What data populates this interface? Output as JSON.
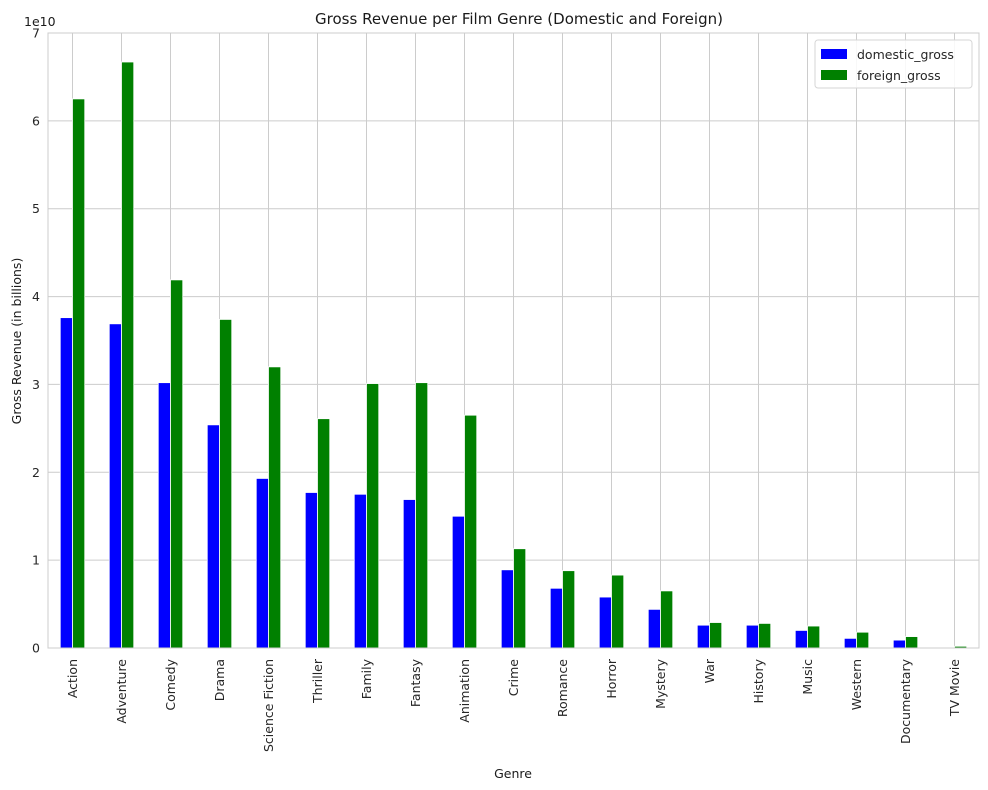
{
  "chart_data": {
    "type": "bar",
    "title": "Gross Revenue per Film Genre (Domestic and Foreign)",
    "xlabel": "Genre",
    "ylabel": "Gross Revenue (in billions)",
    "y_offset_label": "1e10",
    "y_scale": 10000000000,
    "ylim": [
      0,
      70000000000
    ],
    "yticks": [
      0,
      10000000000,
      20000000000,
      30000000000,
      40000000000,
      50000000000,
      60000000000,
      70000000000
    ],
    "ytick_labels": [
      "0",
      "1",
      "2",
      "3",
      "4",
      "5",
      "6",
      "7"
    ],
    "grid": true,
    "legend_position": "top-right",
    "categories": [
      "Action",
      "Adventure",
      "Comedy",
      "Drama",
      "Science Fiction",
      "Thriller",
      "Family",
      "Fantasy",
      "Animation",
      "Crime",
      "Romance",
      "Horror",
      "Mystery",
      "War",
      "History",
      "Music",
      "Western",
      "Documentary",
      "TV Movie"
    ],
    "series": [
      {
        "name": "domestic_gross",
        "color": "#0000ff",
        "values": [
          37600000000,
          36900000000,
          30200000000,
          25400000000,
          19300000000,
          17700000000,
          17500000000,
          16900000000,
          15000000000,
          8900000000,
          6800000000,
          5800000000,
          4400000000,
          2600000000,
          2600000000,
          2000000000,
          1100000000,
          900000000,
          50000000
        ]
      },
      {
        "name": "foreign_gross",
        "color": "#008000",
        "values": [
          62500000000,
          66700000000,
          41900000000,
          37400000000,
          32000000000,
          26100000000,
          30100000000,
          30200000000,
          26500000000,
          11300000000,
          8800000000,
          8300000000,
          6500000000,
          2900000000,
          2800000000,
          2500000000,
          1800000000,
          1300000000,
          200000000
        ]
      }
    ]
  }
}
